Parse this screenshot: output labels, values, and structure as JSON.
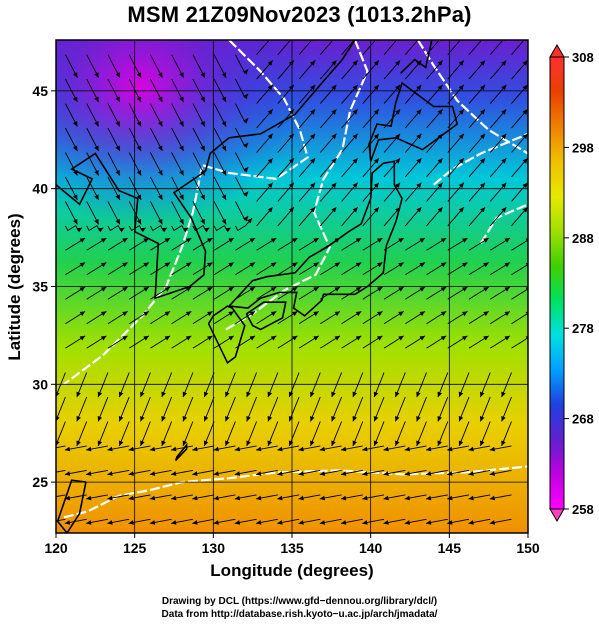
{
  "title": "MSM 21Z09Nov2023 (1013.2hPa)",
  "chart_data": {
    "type": "heatmap",
    "title": "MSM 21Z09Nov2023 (1013.2hPa)",
    "xlabel": "Longitude (degrees)",
    "ylabel": "Latitude  (degrees)",
    "xlim": [
      120,
      150
    ],
    "ylim": [
      22.4,
      47.6
    ],
    "x_ticks": [
      "120",
      "125",
      "130",
      "135",
      "140",
      "145",
      "150"
    ],
    "y_ticks": [
      "25",
      "30",
      "35",
      "40",
      "45"
    ],
    "colorbar": {
      "min": 258,
      "max": 308,
      "tick_labels": [
        "308",
        "298",
        "288",
        "278",
        "268",
        "258"
      ],
      "colors": [
        "#ff00ff",
        "#c000e0",
        "#6020d0",
        "#2040e0",
        "#00a0ff",
        "#00e0e0",
        "#00e060",
        "#40d000",
        "#a0e000",
        "#e8e800",
        "#f0c000",
        "#f08000",
        "#e84000",
        "#ff3030"
      ]
    },
    "grid": true
  },
  "credits": {
    "line1": "Drawing by DCL (https://www.gfd−dennou.org/library/dcl/)",
    "line2": "Data from http://database.rish.kyoto−u.ac.jp/arch/jmadata/"
  }
}
